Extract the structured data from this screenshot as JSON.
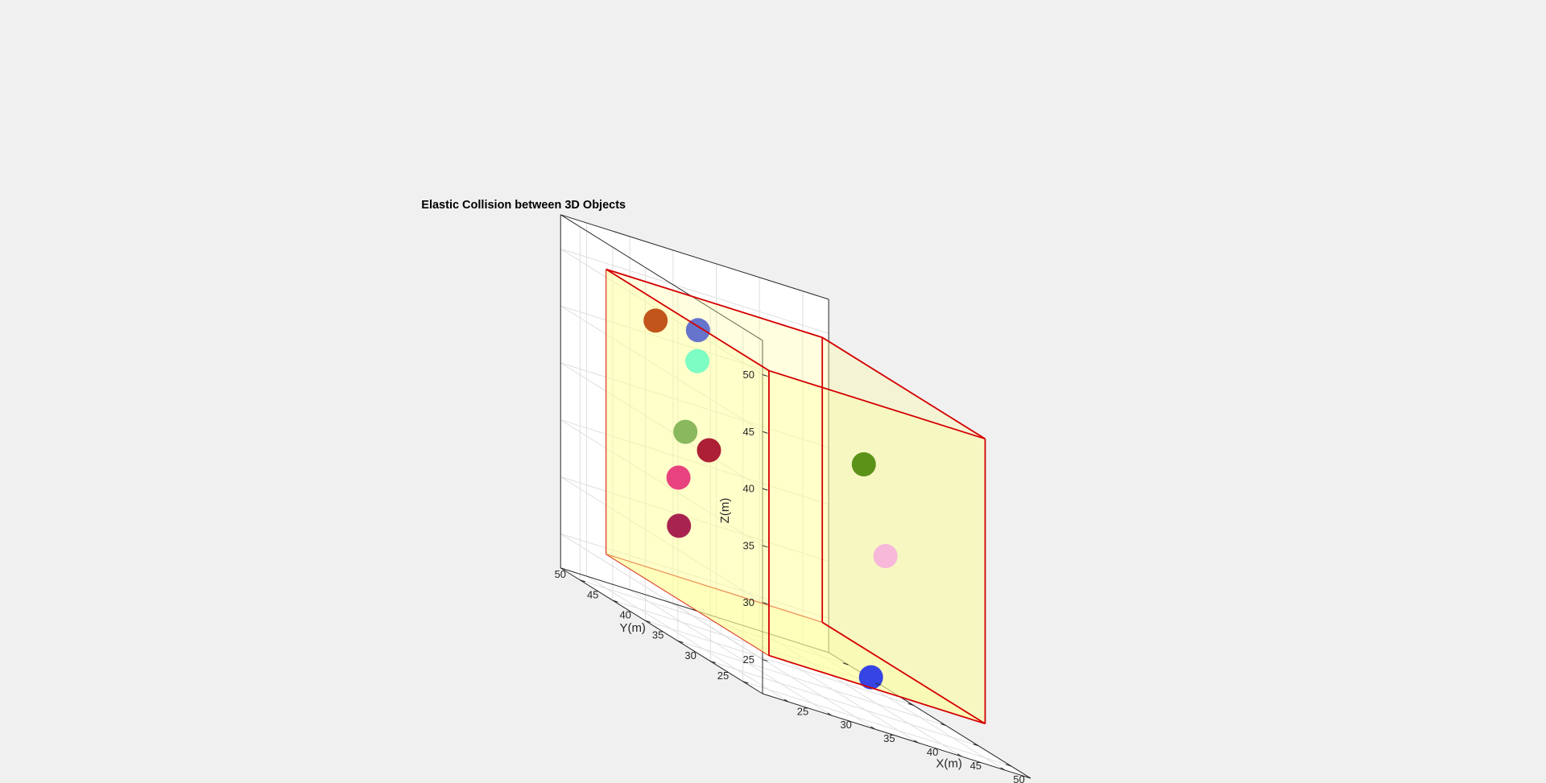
{
  "chart_data": {
    "type": "scatter3d",
    "title": "Elastic Collision between 3D Objects",
    "xlabel": "X(m)",
    "ylabel": "Y(m)",
    "zlabel": "Z(m)",
    "xlim": [
      22,
      53
    ],
    "ylim": [
      22,
      53
    ],
    "zlim": [
      22,
      53
    ],
    "xticks": [
      25,
      30,
      35,
      40,
      45,
      50
    ],
    "yticks": [
      25,
      30,
      35,
      40,
      45,
      50
    ],
    "zticks": [
      25,
      30,
      35,
      40,
      45,
      50
    ],
    "grid": true,
    "box": {
      "min": [
        25,
        25,
        25
      ],
      "max": [
        50,
        50,
        50
      ],
      "face_color": "#ffff99",
      "edge_color": "#d40000"
    },
    "objects": [
      {
        "x": 25.0,
        "y": 42.4,
        "z": 48.2,
        "color": "#c2561a"
      },
      {
        "x": 29.6,
        "y": 42.0,
        "z": 48.6,
        "color": "#6674cc"
      },
      {
        "x": 28.1,
        "y": 40.1,
        "z": 46.2,
        "color": "#7dfcc3"
      },
      {
        "x": 24.0,
        "y": 36.5,
        "z": 40.3,
        "color": "#8ab85d"
      },
      {
        "x": 25.6,
        "y": 35.0,
        "z": 39.6,
        "color": "#ad1f35"
      },
      {
        "x": 22.3,
        "y": 35.3,
        "z": 36.3,
        "color": "#e8427f"
      },
      {
        "x": 21.0,
        "y": 33.5,
        "z": 32.4,
        "color": "#a8234f"
      },
      {
        "x": 42.0,
        "y": 33.0,
        "z": 43.0,
        "color": "#5a9318"
      },
      {
        "x": 35.6,
        "y": 23.4,
        "z": 26.2,
        "color": "#3544e3"
      },
      {
        "x": 43.0,
        "y": 31.0,
        "z": 35.9,
        "color": "#f7b8da"
      }
    ]
  }
}
